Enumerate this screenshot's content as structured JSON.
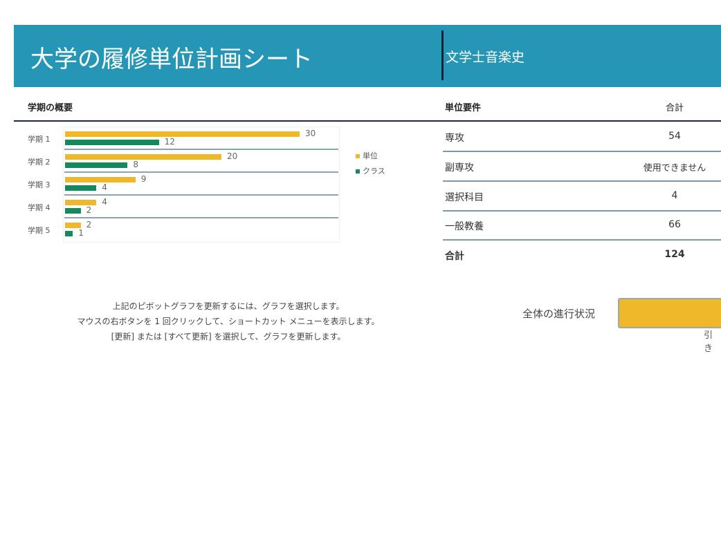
{
  "header": {
    "title": "大学の履修単位計画シート",
    "degree": "文学士音楽史"
  },
  "summary": {
    "heading": "学期の概要"
  },
  "chart_data": {
    "type": "bar",
    "orientation": "horizontal",
    "categories": [
      "学期 1",
      "学期 2",
      "学期 3",
      "学期 4",
      "学期 5"
    ],
    "series": [
      {
        "name": "単位",
        "color": "#eeb82a",
        "values": [
          30,
          20,
          9,
          4,
          2
        ]
      },
      {
        "name": "クラス",
        "color": "#148a5c",
        "values": [
          12,
          8,
          4,
          2,
          1
        ]
      }
    ],
    "legend": "right",
    "xlim": [
      0,
      35
    ]
  },
  "requirements": {
    "heading": "単位要件",
    "total_heading": "合計",
    "rows": [
      {
        "label": "専攻",
        "value": "54"
      },
      {
        "label": "副専攻",
        "value": "使用できません"
      },
      {
        "label": "選択科目",
        "value": "4"
      },
      {
        "label": "一般教養",
        "value": "66"
      }
    ],
    "total": {
      "label": "合計",
      "value": "124"
    }
  },
  "note": [
    "上記のピボットグラフを更新するには、グラフを選択します。",
    "マウスの右ボタンを 1 回クリックして、ショートカット メニューを表示します。",
    "[更新] または [すべて更新] を選択して、グラフを更新します。"
  ],
  "progress": {
    "label": "全体の進行状況",
    "remaining_label": "引き"
  }
}
